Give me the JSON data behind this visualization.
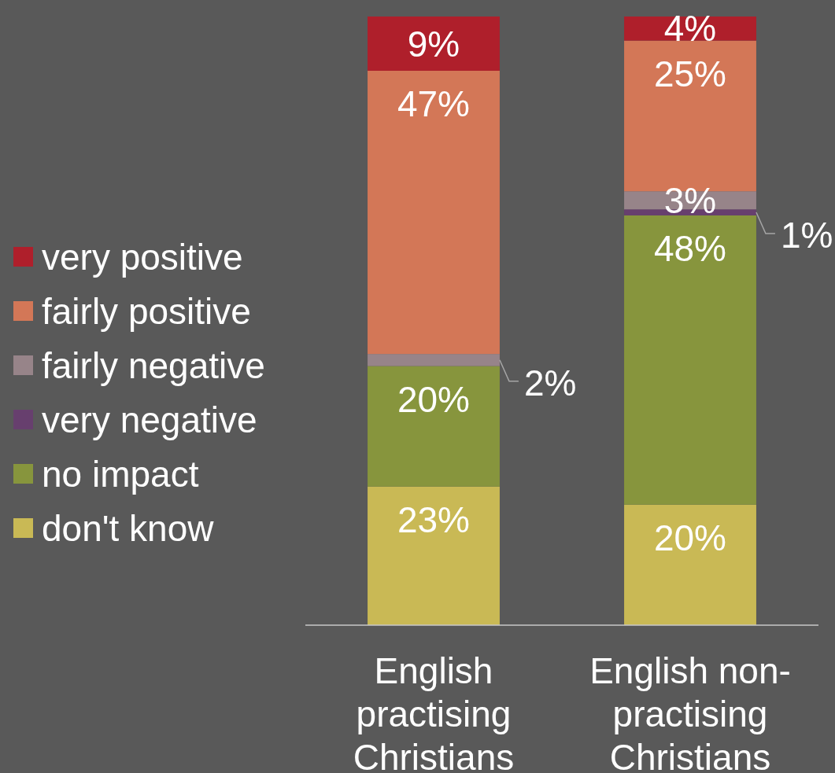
{
  "chart_data": {
    "type": "bar",
    "stacked": true,
    "legend": "left",
    "categories": [
      "English practising Christians",
      "English non-practising Christians"
    ],
    "series": [
      {
        "name": "don't know",
        "color": "#c9b955",
        "values": [
          23,
          20
        ],
        "value_labels": [
          "23%",
          "20%"
        ]
      },
      {
        "name": "no impact",
        "color": "#87953d",
        "values": [
          20,
          48
        ],
        "value_labels": [
          "20%",
          "48%"
        ]
      },
      {
        "name": "very negative",
        "color": "#673f6e",
        "values": [
          null,
          1
        ],
        "value_labels": [
          null,
          "1%"
        ]
      },
      {
        "name": "fairly negative",
        "color": "#978489",
        "values": [
          2,
          3
        ],
        "value_labels": [
          "2%",
          "3%"
        ]
      },
      {
        "name": "fairly positive",
        "color": "#d37757",
        "values": [
          47,
          25
        ],
        "value_labels": [
          "47%",
          "25%"
        ]
      },
      {
        "name": "very positive",
        "color": "#af1f2b",
        "values": [
          9,
          4
        ],
        "value_labels": [
          "9%",
          "4%"
        ]
      }
    ]
  }
}
